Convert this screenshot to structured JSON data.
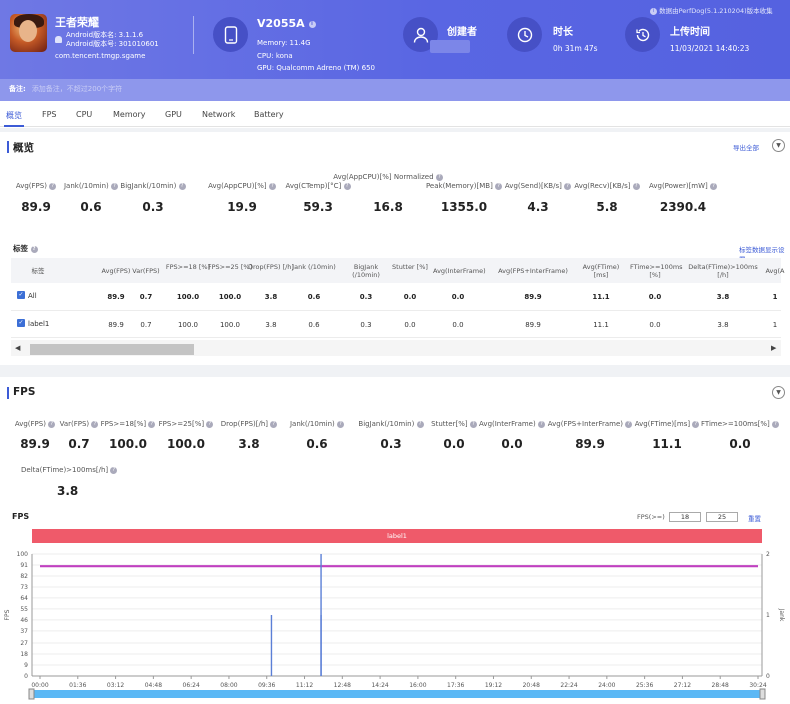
{
  "header": {
    "app_name": "王者荣耀",
    "android_version_name": "Android版本名: 3.1.1.6",
    "android_version_code": "Android版本号: 301010601",
    "package": "com.tencent.tmgp.sgame",
    "device": "V2055A",
    "memory": "Memory: 11.4G",
    "cpu": "CPU: kona",
    "gpu": "GPU: Qualcomm Adreno (TM) 650",
    "creator_label": "创建者",
    "duration_label": "时长",
    "duration_value": "0h 31m 47s",
    "upload_label": "上传时间",
    "upload_value": "11/03/2021 14:40:23",
    "source": "数据由PerfDog(5.1.210204)版本收集",
    "remark_label": "备注:",
    "remark_placeholder": "添加备注，不超过200个字符"
  },
  "tabs": [
    "概览",
    "FPS",
    "CPU",
    "Memory",
    "GPU",
    "Network",
    "Battery"
  ],
  "overview": {
    "title": "概览",
    "export": "导出全部",
    "stats": [
      {
        "label": "Avg(FPS)",
        "value": "89.9"
      },
      {
        "label": "Jank(/10min)",
        "value": "0.6"
      },
      {
        "label": "BigJank(/10min)",
        "value": "0.3"
      },
      {
        "label": "Avg(AppCPU)[%]",
        "value": "19.9"
      },
      {
        "label": "Avg(CTemp)[°C]",
        "value": "59.3"
      },
      {
        "label": "Avg(AppCPU)[%] Normalized",
        "value": "16.8"
      },
      {
        "label": "Peak(Memory)[MB]",
        "value": "1355.0"
      },
      {
        "label": "Avg(Send)[KB/s]",
        "value": "4.3"
      },
      {
        "label": "Avg(Recv)[KB/s]",
        "value": "5.8"
      },
      {
        "label": "Avg(Power)[mW]",
        "value": "2390.4"
      }
    ],
    "table_title": "标签",
    "table_settings": "标签数据显示设置",
    "columns": [
      "标签",
      "Avg(FPS)",
      "Var(FPS)",
      "FPS>=18 [%]",
      "FPS>=25 [%]",
      "Drop(FPS) [/h]",
      "Jank (/10min)",
      "BigJank (/10min)",
      "Stutter [%]",
      "Avg(InterFrame)",
      "Avg(FPS+InterFrame)",
      "Avg(FTime) [ms]",
      "FTime>=100ms [%]",
      "Delta(FTime)>100ms [/h]",
      "Avg(A"
    ],
    "rows": [
      {
        "label": "All",
        "cells": [
          "89.9",
          "0.7",
          "100.0",
          "100.0",
          "3.8",
          "0.6",
          "0.3",
          "0.0",
          "0.0",
          "89.9",
          "11.1",
          "0.0",
          "3.8",
          "1"
        ]
      },
      {
        "label": "label1",
        "cells": [
          "89.9",
          "0.7",
          "100.0",
          "100.0",
          "3.8",
          "0.6",
          "0.3",
          "0.0",
          "0.0",
          "89.9",
          "11.1",
          "0.0",
          "3.8",
          "1"
        ]
      }
    ]
  },
  "fps_section": {
    "title": "FPS",
    "stats": [
      {
        "label": "Avg(FPS)",
        "value": "89.9"
      },
      {
        "label": "Var(FPS)",
        "value": "0.7"
      },
      {
        "label": "FPS>=18[%]",
        "value": "100.0"
      },
      {
        "label": "FPS>=25[%]",
        "value": "100.0"
      },
      {
        "label": "Drop(FPS)[/h]",
        "value": "3.8"
      },
      {
        "label": "Jank(/10min)",
        "value": "0.6"
      },
      {
        "label": "BigJank(/10min)",
        "value": "0.3"
      },
      {
        "label": "Stutter[%]",
        "value": "0.0"
      },
      {
        "label": "Avg(InterFrame)",
        "value": "0.0"
      },
      {
        "label": "Avg(FPS+InterFrame)",
        "value": "89.9"
      },
      {
        "label": "Avg(FTime)[ms]",
        "value": "11.1"
      },
      {
        "label": "FTime>=100ms[%]",
        "value": "0.0"
      }
    ],
    "extra_label": "Delta(FTime)>100ms[/h]",
    "extra_value": "3.8",
    "chart_title": "FPS",
    "threshold_label": "FPS(>=)",
    "threshold_1": "18",
    "threshold_2": "25",
    "reset": "重置",
    "band_label": "label1"
  },
  "chart_data": {
    "type": "line",
    "title": "FPS",
    "ylabel": "FPS",
    "y2label": "Jank",
    "yticks": [
      "0",
      "9",
      "18",
      "27",
      "37",
      "46",
      "55",
      "64",
      "73",
      "82",
      "91",
      "100"
    ],
    "y2ticks": [
      "0",
      "1",
      "2"
    ],
    "xticks": [
      "00:00",
      "01:36",
      "03:12",
      "04:48",
      "06:24",
      "08:00",
      "09:36",
      "11:12",
      "12:48",
      "14:24",
      "16:00",
      "17:36",
      "19:12",
      "20:48",
      "22:24",
      "24:00",
      "25:36",
      "27:12",
      "28:48",
      "30:24"
    ],
    "ylim": [
      0,
      100
    ],
    "series": [
      {
        "values": [
          90,
          90,
          90,
          90,
          90,
          90,
          90,
          90,
          90,
          90,
          90,
          90,
          90,
          90,
          90,
          90,
          90,
          90,
          90,
          90
        ],
        "color": "#c040c0"
      }
    ],
    "jank_events": [
      {
        "x": "09:48",
        "value": 1
      },
      {
        "x": "11:54",
        "value": 1
      },
      {
        "x": "11:54",
        "value": 2
      }
    ],
    "colors": {
      "fps": "#c040c0",
      "jank": "#5b7fd6",
      "band": "#ef5a6a"
    }
  }
}
